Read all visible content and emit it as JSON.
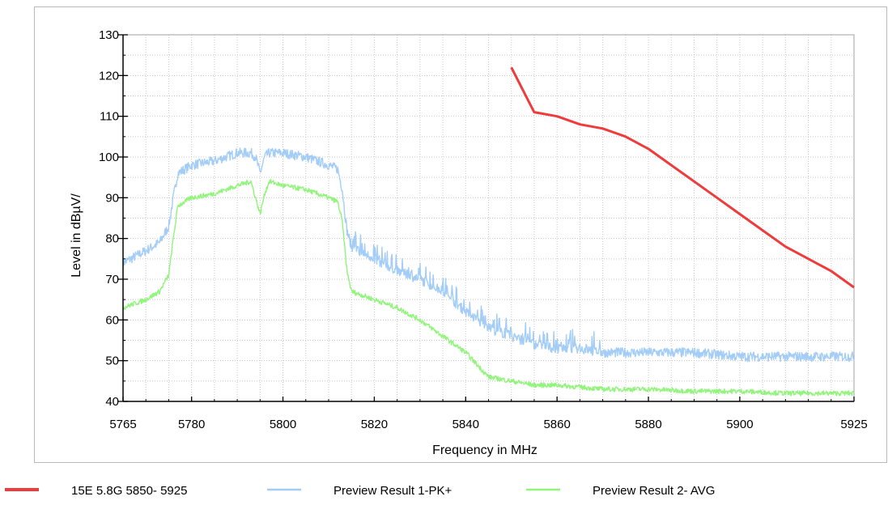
{
  "chart_data": {
    "type": "line",
    "title": "",
    "xlabel": "Frequency in MHz",
    "ylabel": "Level in dBµV/",
    "xlim": [
      5765,
      5925
    ],
    "ylim": [
      40,
      130
    ],
    "xticks": [
      5765,
      5780,
      5800,
      5820,
      5840,
      5860,
      5880,
      5900,
      5925
    ],
    "yticks": [
      40,
      50,
      60,
      70,
      80,
      90,
      100,
      110,
      120,
      130
    ],
    "grid": true,
    "legend_position": "bottom",
    "series": [
      {
        "name": "15E 5.8G 5850-5925",
        "color": "#ee3b3b",
        "x": [
          5850,
          5855,
          5860,
          5865,
          5870,
          5875,
          5880,
          5885,
          5890,
          5895,
          5900,
          5905,
          5910,
          5915,
          5920,
          5925
        ],
        "y": [
          122,
          111,
          110,
          108,
          107,
          105,
          102,
          98,
          94,
          90,
          86,
          82,
          78,
          75,
          72,
          68
        ]
      },
      {
        "name": "Preview Result 1-PK+",
        "color": "#a3cdf7",
        "x": [
          5765,
          5770,
          5773,
          5775,
          5776,
          5777,
          5780,
          5785,
          5790,
          5793,
          5794,
          5795,
          5796,
          5797,
          5800,
          5805,
          5810,
          5812,
          5813,
          5814,
          5815,
          5820,
          5825,
          5830,
          5835,
          5840,
          5845,
          5850,
          5855,
          5860,
          5865,
          5870,
          5880,
          5890,
          5900,
          5910,
          5920,
          5925
        ],
        "y": [
          74,
          77,
          79,
          83,
          90,
          96,
          98,
          99,
          101,
          101,
          100,
          96,
          100,
          101,
          101,
          100,
          98,
          97,
          92,
          82,
          78,
          75,
          72,
          70,
          67,
          62,
          58,
          56,
          54,
          53,
          53,
          52,
          52,
          52,
          51,
          51,
          51,
          51
        ],
        "noise": 1.2
      },
      {
        "name": "Preview Result 2- AVG",
        "color": "#90f57a",
        "x": [
          5765,
          5770,
          5773,
          5775,
          5776,
          5777,
          5780,
          5785,
          5790,
          5793,
          5794,
          5795,
          5796,
          5797,
          5800,
          5805,
          5810,
          5812,
          5813,
          5814,
          5815,
          5820,
          5825,
          5830,
          5835,
          5840,
          5845,
          5850,
          5855,
          5860,
          5870,
          5880,
          5890,
          5900,
          5910,
          5920,
          5925
        ],
        "y": [
          63,
          65,
          67,
          71,
          80,
          88,
          90,
          91,
          93,
          94,
          90,
          86,
          91,
          94,
          93,
          92,
          90,
          89,
          84,
          72,
          67,
          65,
          63,
          60,
          56,
          52,
          46,
          45,
          44,
          44,
          43,
          43,
          42.5,
          42.5,
          42,
          42,
          42
        ],
        "noise": 0.6
      }
    ]
  },
  "legend": {
    "items": [
      {
        "label": "15E 5.8G 5850- 5925",
        "color": "#ee3b3b"
      },
      {
        "label": "Preview Result 1-PK+",
        "color": "#a3cdf7"
      },
      {
        "label": "Preview Result 2- AVG",
        "color": "#90f57a"
      }
    ]
  }
}
